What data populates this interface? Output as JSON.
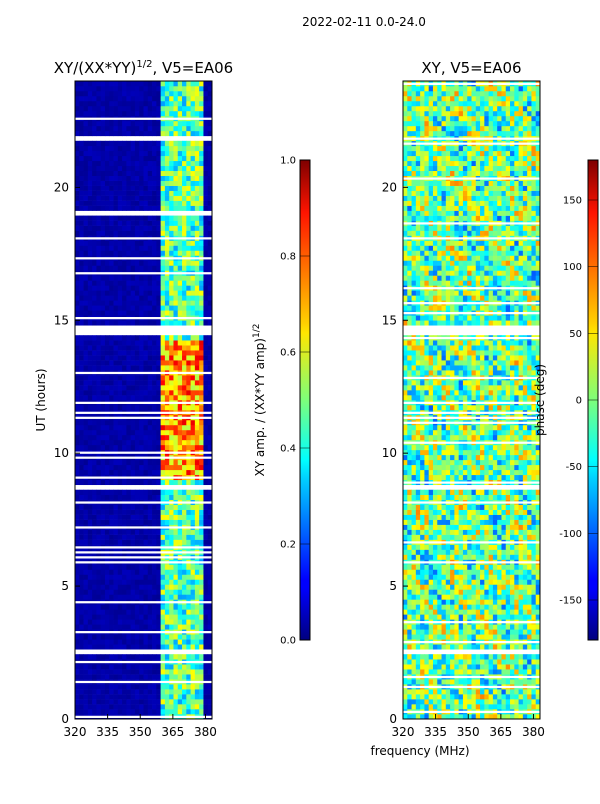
{
  "suptitle": "2022-02-11 0.0-24.0",
  "chart_data": [
    {
      "type": "heatmap",
      "title_main": "XY/(XX*YY)",
      "title_exp": "1/2",
      "title_rest": ", V5=EA06",
      "ylabel": "UT (hours)",
      "xlabel": "",
      "x_ticks": [
        "320",
        "335",
        "350",
        "365",
        "380"
      ],
      "y_ticks": [
        "0",
        "5",
        "10",
        "15",
        "20"
      ],
      "xlim": [
        320,
        383
      ],
      "ylim": [
        0,
        24
      ],
      "colorbar": {
        "label_main": "XY amp. / (XX*YY amp)",
        "label_exp": "1/2",
        "range": [
          0.0,
          1.0
        ],
        "ticks": [
          "0.0",
          "0.2",
          "0.4",
          "0.6",
          "0.8",
          "1.0"
        ],
        "colormap": "jet"
      },
      "notes": "Dark blue (~0) across 320-360 MHz; bright band 360-380 MHz; high-amplitude (yellow-red) region 9-14 h near 360-380 MHz; blank (flagged) rows near 2.6 h, 8.7 h, 14.7 h, 19 h, 21.8 h"
    },
    {
      "type": "heatmap",
      "title": "XY, V5=EA06",
      "ylabel": "",
      "xlabel": "frequency (MHz)",
      "x_ticks": [
        "320",
        "335",
        "350",
        "365",
        "380"
      ],
      "y_ticks": [
        "0",
        "5",
        "10",
        "15",
        "20"
      ],
      "xlim": [
        320,
        383
      ],
      "ylim": [
        0,
        24
      ],
      "colorbar": {
        "label": "phase (deg)",
        "range": [
          -180,
          180
        ],
        "ticks": [
          "-150",
          "-100",
          "-50",
          "0",
          "50",
          "100",
          "150"
        ],
        "colormap": "jet"
      },
      "notes": "Phase varies mostly in cyan-yellow-orange range with noisy horizontal striping; flagged rows near 2.6 h, 14.7 h, 15.5 h"
    }
  ]
}
